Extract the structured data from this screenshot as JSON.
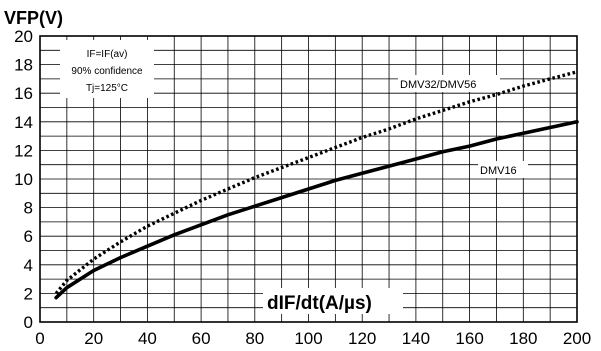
{
  "chart_data": {
    "type": "line",
    "title": "",
    "ylabel": "VFP(V)",
    "xlabel": "dIF/dt(A/µs)",
    "xlim": [
      0,
      200
    ],
    "ylim": [
      0,
      20
    ],
    "x_ticks": [
      0,
      20,
      40,
      60,
      80,
      100,
      120,
      140,
      160,
      180,
      200
    ],
    "y_ticks": [
      0,
      2,
      4,
      6,
      8,
      10,
      12,
      14,
      16,
      18,
      20
    ],
    "grid": "on (minor x every 10, minor y every 1)",
    "conditions": [
      "IF=IF(av)",
      "90% confidence",
      "Tj=125°C"
    ],
    "series": [
      {
        "name": "DMV32/DMV56",
        "style": "dotted",
        "x": [
          6,
          10,
          20,
          30,
          40,
          50,
          60,
          70,
          80,
          90,
          100,
          110,
          120,
          130,
          140,
          150,
          160,
          170,
          180,
          190,
          200
        ],
        "y": [
          2.0,
          2.9,
          4.4,
          5.6,
          6.7,
          7.6,
          8.5,
          9.3,
          10.1,
          10.8,
          11.5,
          12.2,
          12.9,
          13.5,
          14.2,
          14.8,
          15.4,
          15.9,
          16.5,
          17.0,
          17.5
        ]
      },
      {
        "name": "DMV16",
        "style": "solid",
        "x": [
          6,
          10,
          20,
          30,
          40,
          50,
          60,
          70,
          80,
          90,
          100,
          110,
          120,
          130,
          140,
          150,
          160,
          170,
          180,
          190,
          200
        ],
        "y": [
          1.7,
          2.4,
          3.6,
          4.5,
          5.3,
          6.1,
          6.8,
          7.5,
          8.1,
          8.7,
          9.3,
          9.9,
          10.4,
          10.9,
          11.4,
          11.9,
          12.3,
          12.8,
          13.2,
          13.6,
          14.0
        ]
      }
    ]
  }
}
